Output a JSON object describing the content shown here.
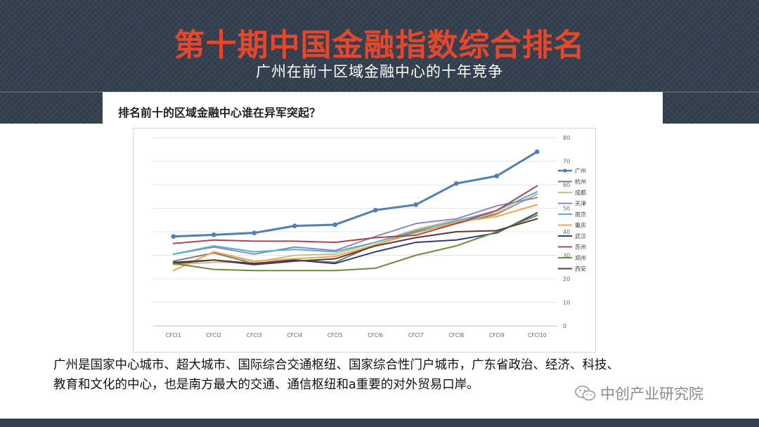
{
  "header": {
    "title": "第十期中国金融指数综合排名",
    "subtitle": "广州在前十区域金融中心的十年竞争"
  },
  "card": {
    "title": "排名前十的区域金融中心谁在异军突起？"
  },
  "description": {
    "line1": "广州是国家中心城市、超大城市、国际综合交通枢纽、国家综合性门户城市，广东省政治、经济、科技、",
    "line2": "教育和文化的中心，也是南方最大的交通、通信枢纽和a重要的对外贸易口岸。"
  },
  "watermark": {
    "text": "中创产业研究院",
    "icon": "wechat-icon"
  },
  "colors": {
    "header_bg": "#34404f",
    "title_accent": "#e5472d"
  },
  "chart_data": {
    "type": "line",
    "title": "",
    "xlabel": "",
    "ylabel": "",
    "categories": [
      "CFCI1",
      "CFCI2",
      "CFCI3",
      "CFCI4",
      "CFCI5",
      "CFCI6",
      "CFCI7",
      "CFCI8",
      "CFCI9",
      "CFCI10"
    ],
    "ylim": [
      0,
      80
    ],
    "yticks": [
      0,
      10,
      20,
      30,
      40,
      50,
      60,
      70,
      80
    ],
    "y_axis_side": "right",
    "grid": true,
    "legend_position": "right",
    "series": [
      {
        "name": "广州",
        "color": "#4f7fb5",
        "markers": true,
        "values": [
          38,
          38.7,
          39.5,
          42.5,
          43,
          49.2,
          51.5,
          60.5,
          63.7,
          74
        ]
      },
      {
        "name": "杭州",
        "color": "#7c7c7c",
        "values": [
          27.5,
          31,
          26.5,
          28,
          27,
          34.5,
          40,
          43.5,
          47.5,
          56
        ]
      },
      {
        "name": "成都",
        "color": "#d9b98b",
        "values": [
          26,
          27,
          27,
          30,
          30.5,
          35.5,
          41,
          45,
          48,
          56
        ]
      },
      {
        "name": "天津",
        "color": "#8f86c0",
        "values": [
          30.5,
          33.5,
          30.5,
          33.5,
          32,
          38,
          43.5,
          45.5,
          51,
          54.5
        ]
      },
      {
        "name": "南京",
        "color": "#4fb3d6",
        "values": [
          30.5,
          34,
          31.5,
          32.5,
          31.5,
          35.5,
          40.5,
          44.5,
          49,
          57
        ]
      },
      {
        "name": "重庆",
        "color": "#f2a541",
        "values": [
          23.5,
          31.5,
          27.5,
          28.5,
          29.5,
          34.5,
          39.5,
          44,
          46.5,
          51.5
        ]
      },
      {
        "name": "武汉",
        "color": "#2f3f74",
        "values": [
          26.5,
          28,
          26.5,
          28,
          26.5,
          31.5,
          35.5,
          36.5,
          39.5,
          48
        ]
      },
      {
        "name": "苏州",
        "color": "#b2444e",
        "values": [
          35,
          36.5,
          36,
          36,
          35.5,
          37.5,
          38.5,
          43.5,
          49,
          59.5
        ]
      },
      {
        "name": "郑州",
        "color": "#6d8a3a",
        "values": [
          26.5,
          24,
          23.5,
          23.5,
          23.5,
          24.5,
          30,
          34,
          40,
          47
        ]
      },
      {
        "name": "西安",
        "color": "#5b3b34",
        "values": [
          27,
          28,
          26,
          27.5,
          28.5,
          34,
          37.5,
          40,
          40.5,
          45.5
        ]
      }
    ]
  }
}
